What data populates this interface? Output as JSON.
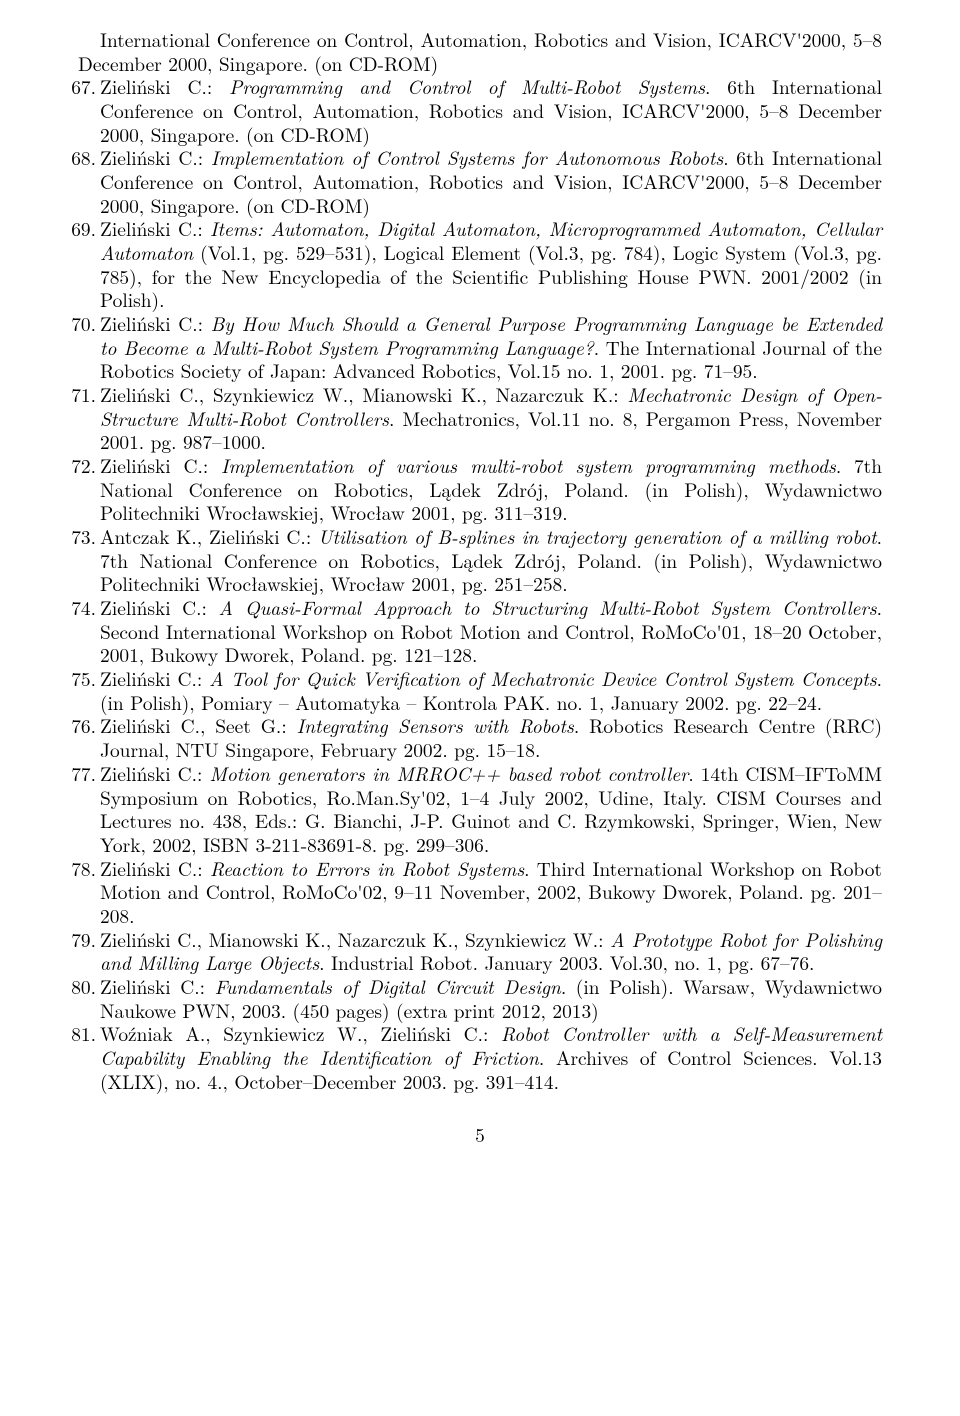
{
  "continuation": "International Conference on Control, Automation, Robotics and Vision, ICARCV'2000, 5–8 December 2000, Singapore. (on CD-ROM)",
  "refs": [
    {
      "pre": "Zieliński C.: ",
      "title": "Programming and Control of Multi-Robot Systems",
      "post": ". 6th International Conference on Control, Automation, Robotics and Vision, ICARCV'2000, 5–8 December 2000, Singapore. (on CD-ROM)"
    },
    {
      "pre": "Zieliński C.: ",
      "title": "Implementation of Control Systems for Autonomous Robots",
      "post": ". 6th International Conference on Control, Automation, Robotics and Vision, ICARCV'2000, 5–8 December 2000, Singapore. (on CD-ROM)"
    },
    {
      "pre": "Zieliński C.: ",
      "title": "Items: Automaton, Digital Automaton, Microprogrammed Automaton, Cellular Automaton",
      "post": " (Vol.1, pg. 529–531), Logical Element (Vol.3, pg. 784), Logic System (Vol.3, pg. 785), for the New Encyclopedia of the Scientific Publishing House PWN. 2001/2002 (in Polish)."
    },
    {
      "pre": "Zieliński C.: ",
      "title": "By How Much Should a General Purpose Programming Language be Extended to Become a Multi-Robot System Programming Language?",
      "post": ". The International Journal of the Robotics Society of Japan: Advanced Robotics, Vol.15 no. 1, 2001. pg. 71–95."
    },
    {
      "pre": "Zieliński C., Szynkiewicz W., Mianowski K., Nazarczuk K.: ",
      "title": "Mechatronic Design of Open-Structure Multi-Robot Controllers",
      "post": ". Mechatronics, Vol.11 no. 8, Pergamon Press, November 2001. pg. 987–1000."
    },
    {
      "pre": "Zieliński C.: ",
      "title": "Implementation of various multi-robot system programming methods",
      "post": ". 7th National Conference on Robotics, Lądek Zdrój, Poland. (in Polish), Wydawnictwo Politechniki Wrocławskiej, Wrocław 2001, pg. 311–319."
    },
    {
      "pre": "Antczak K., Zieliński C.: ",
      "title": "Utilisation of B-splines in trajectory generation of a milling robot",
      "post": ". 7th National Conference on Robotics, Lądek Zdrój, Poland. (in Polish), Wydawnictwo Politechniki Wrocławskiej, Wrocław 2001, pg. 251–258."
    },
    {
      "pre": "Zieliński C.: ",
      "title": "A Quasi-Formal Approach to Structuring Multi-Robot System Controllers",
      "post": ". Second International Workshop on Robot Motion and Control, RoMoCo'01, 18–20 October, 2001, Bukowy Dworek, Poland. pg. 121–128."
    },
    {
      "pre": "Zieliński C.: ",
      "title": "A Tool for Quick Verification of Mechatronic Device Control System Concepts",
      "post": ". (in Polish), Pomiary – Automatyka – Kontrola PAK. no. 1, January 2002. pg. 22–24."
    },
    {
      "pre": "Zieliński C., Seet G.: ",
      "title": "Integrating Sensors with Robots",
      "post": ". Robotics Research Centre (RRC) Journal, NTU Singapore, February 2002. pg. 15–18."
    },
    {
      "pre": "Zieliński C.: ",
      "title": "Motion generators in MRROC++ based robot controller",
      "post": ". 14th CISM–IFToMM Symposium on Robotics, Ro.Man.Sy'02, 1–4 July 2002, Udine, Italy. CISM Courses and Lectures no. 438, Eds.: G. Bianchi, J-P. Guinot and C. Rzymkowski, Springer, Wien, New York, 2002, ISBN 3-211-83691-8. pg. 299–306."
    },
    {
      "pre": "Zieliński C.: ",
      "title": "Reaction to Errors in Robot Systems",
      "post": ". Third International Workshop on Robot Motion and Control, RoMoCo'02, 9–11 November, 2002, Bukowy Dworek, Poland. pg. 201–208."
    },
    {
      "pre": "Zieliński C., Mianowski K., Nazarczuk K., Szynkiewicz W.: ",
      "title": "A Prototype Robot for Polishing and Milling Large Objects",
      "post": ". Industrial Robot. January 2003. Vol.30, no. 1, pg. 67–76."
    },
    {
      "pre": "Zieliński C.: ",
      "title": "Fundamentals of Digital Circuit Design",
      "post": ". (in Polish). Warsaw, Wydawnictwo Naukowe PWN, 2003. (450 pages) (extra print 2012, 2013)"
    },
    {
      "pre": "Woźniak A., Szynkiewicz W., Zieliński C.: ",
      "title": "Robot Controller with a Self-Measurement Capability Enabling the Identification of Friction",
      "post": ". Archives of Control Sciences. Vol.13 (XLIX), no. 4., October–December 2003. pg. 391–414."
    }
  ],
  "page_number": "5"
}
